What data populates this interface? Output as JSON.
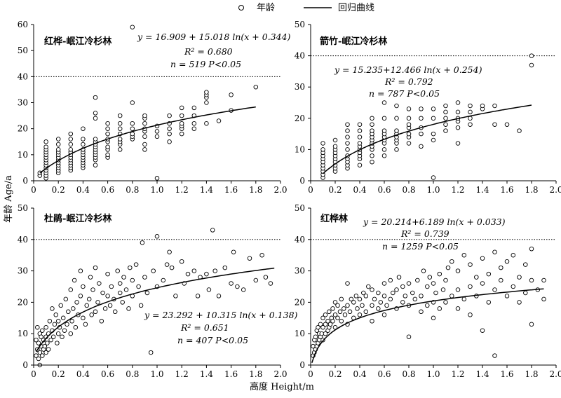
{
  "legend": {
    "scatter_label": "年龄",
    "line_label": "回归曲线"
  },
  "xlabel": "高度 Height/m",
  "ylabel": "年龄 Age/a",
  "chart_data": [
    {
      "type": "scatter",
      "title": "红桦-岷江冷杉林",
      "equation": "y = 16.909 + 15.018 ln(x + 0.344)",
      "r2": "R² = 0.680",
      "n_p": "n = 519   P<0.05",
      "xlim": [
        0,
        2.0
      ],
      "ylim": [
        0,
        60
      ],
      "xticks": [
        "0",
        "0.2",
        "0.4",
        "0.6",
        "0.8",
        "1.0",
        "1.2",
        "1.4",
        "1.6",
        "1.8",
        "2.0"
      ],
      "yticks": [
        "0",
        "10",
        "20",
        "30",
        "40",
        "50",
        "60"
      ],
      "reference_line": 40,
      "fit": {
        "a": 16.909,
        "b": 15.018,
        "c": 0.344,
        "x_from": 0.05,
        "x_to": 1.8
      },
      "series": [
        {
          "x": [
            0.05,
            0.05,
            0.1,
            0.1,
            0.1,
            0.1,
            0.1,
            0.1,
            0.1,
            0.1,
            0.1,
            0.1,
            0.1,
            0.1,
            0.1,
            0.1,
            0.2,
            0.2,
            0.2,
            0.2,
            0.2,
            0.2,
            0.2,
            0.2,
            0.2,
            0.2,
            0.2,
            0.2,
            0.3,
            0.3,
            0.3,
            0.3,
            0.3,
            0.3,
            0.3,
            0.3,
            0.3,
            0.3,
            0.3,
            0.3,
            0.4,
            0.4,
            0.4,
            0.4,
            0.4,
            0.4,
            0.4,
            0.4,
            0.4,
            0.4,
            0.4,
            0.5,
            0.5,
            0.5,
            0.5,
            0.5,
            0.5,
            0.5,
            0.5,
            0.5,
            0.5,
            0.5,
            0.5,
            0.5,
            0.6,
            0.6,
            0.6,
            0.6,
            0.6,
            0.6,
            0.6,
            0.6,
            0.6,
            0.7,
            0.7,
            0.7,
            0.7,
            0.7,
            0.7,
            0.7,
            0.7,
            0.8,
            0.8,
            0.8,
            0.8,
            0.8,
            0.8,
            0.9,
            0.9,
            0.9,
            0.9,
            0.9,
            0.9,
            0.9,
            0.9,
            1.0,
            1.0,
            1.0,
            1.0,
            1.1,
            1.1,
            1.1,
            1.1,
            1.1,
            1.2,
            1.2,
            1.2,
            1.2,
            1.2,
            1.2,
            1.3,
            1.3,
            1.3,
            1.3,
            1.4,
            1.4,
            1.4,
            1.4,
            1.4,
            1.5,
            1.6,
            1.6,
            1.8
          ],
          "y": [
            2,
            3,
            1,
            2,
            3,
            4,
            5,
            6,
            7,
            8,
            9,
            10,
            11,
            12,
            13,
            15,
            3,
            4,
            5,
            6,
            7,
            8,
            9,
            10,
            11,
            12,
            14,
            16,
            4,
            5,
            6,
            7,
            8,
            9,
            10,
            11,
            12,
            14,
            16,
            18,
            5,
            6,
            7,
            8,
            9,
            10,
            11,
            12,
            14,
            16,
            20,
            6,
            8,
            9,
            10,
            11,
            12,
            13,
            14,
            15,
            16,
            24,
            26,
            32,
            9,
            10,
            12,
            13,
            15,
            16,
            18,
            20,
            22,
            12,
            14,
            15,
            16,
            18,
            20,
            22,
            25,
            16,
            17,
            18,
            20,
            22,
            30,
            12,
            14,
            17,
            19,
            20,
            22,
            24,
            25,
            1,
            17,
            19,
            21,
            15,
            18,
            20,
            22,
            25,
            18,
            20,
            21,
            22,
            25,
            28,
            20,
            22,
            25,
            28,
            30,
            32,
            33,
            34,
            22,
            23,
            27,
            33,
            36
          ]
        }
      ],
      "outliers": [
        {
          "x": 0.8,
          "y": 59
        }
      ]
    },
    {
      "type": "scatter",
      "title": "箭竹-岷江冷杉林",
      "equation": "y = 15.235+12.466 ln(x + 0.254)",
      "r2": "R² = 0.792",
      "n_p": "n = 787   P<0.05",
      "xlim": [
        0,
        2.0
      ],
      "ylim": [
        0,
        50
      ],
      "xticks": [
        "0",
        "0.2",
        "0.4",
        "0.6",
        "0.8",
        "1.0",
        "1.2",
        "1.4",
        "1.6",
        "1.8",
        "2.0"
      ],
      "yticks": [
        "0",
        "10",
        "20",
        "30",
        "40",
        "50"
      ],
      "reference_line": 40,
      "fit": {
        "a": 15.235,
        "b": 12.466,
        "c": 0.254,
        "x_from": 0.1,
        "x_to": 1.8
      },
      "series": [
        {
          "x": [
            0.1,
            0.1,
            0.1,
            0.1,
            0.1,
            0.1,
            0.1,
            0.1,
            0.1,
            0.1,
            0.1,
            0.2,
            0.2,
            0.2,
            0.2,
            0.2,
            0.2,
            0.2,
            0.2,
            0.2,
            0.2,
            0.3,
            0.3,
            0.3,
            0.3,
            0.3,
            0.3,
            0.3,
            0.3,
            0.3,
            0.3,
            0.4,
            0.4,
            0.4,
            0.4,
            0.4,
            0.4,
            0.4,
            0.4,
            0.4,
            0.4,
            0.5,
            0.5,
            0.5,
            0.5,
            0.5,
            0.5,
            0.5,
            0.5,
            0.5,
            0.5,
            0.5,
            0.6,
            0.6,
            0.6,
            0.6,
            0.6,
            0.6,
            0.6,
            0.6,
            0.6,
            0.7,
            0.7,
            0.7,
            0.7,
            0.7,
            0.7,
            0.7,
            0.7,
            0.8,
            0.8,
            0.8,
            0.8,
            0.8,
            0.8,
            0.8,
            0.9,
            0.9,
            0.9,
            0.9,
            0.9,
            1.0,
            1.0,
            1.0,
            1.0,
            1.0,
            1.1,
            1.1,
            1.1,
            1.1,
            1.1,
            1.2,
            1.2,
            1.2,
            1.2,
            1.2,
            1.2,
            1.3,
            1.3,
            1.3,
            1.3,
            1.4,
            1.4,
            1.5,
            1.5,
            1.6,
            1.7,
            1.8,
            1.8
          ],
          "y": [
            1,
            2,
            3,
            4,
            5,
            6,
            7,
            8,
            9,
            10,
            12,
            3,
            4,
            5,
            6,
            7,
            8,
            9,
            10,
            11,
            13,
            4,
            5,
            6,
            7,
            8,
            10,
            12,
            14,
            16,
            18,
            5,
            7,
            8,
            9,
            10,
            11,
            12,
            14,
            16,
            18,
            6,
            8,
            10,
            11,
            12,
            13,
            14,
            15,
            16,
            18,
            20,
            8,
            10,
            12,
            13,
            14,
            15,
            16,
            20,
            25,
            10,
            12,
            13,
            14,
            15,
            16,
            20,
            24,
            12,
            14,
            15,
            17,
            18,
            20,
            23,
            11,
            15,
            17,
            20,
            23,
            1,
            13,
            15,
            20,
            23,
            16,
            18,
            20,
            22,
            24,
            12,
            17,
            19,
            20,
            22,
            25,
            18,
            20,
            22,
            24,
            23,
            24,
            18,
            24,
            18,
            16,
            37,
            40
          ]
        }
      ],
      "outliers": []
    },
    {
      "type": "scatter",
      "title": "杜鹃-岷江冷杉林",
      "equation": "y = 23.292 + 10.315 ln(x + 0.138)",
      "r2": "R² = 0.651",
      "n_p": "n = 407   P<0.05",
      "xlim": [
        0,
        2.0
      ],
      "ylim": [
        0,
        50
      ],
      "xticks": [
        "0",
        "0.2",
        "0.4",
        "0.6",
        "0.8",
        "1.0",
        "1.2",
        "1.4",
        "1.6",
        "1.8",
        "2.0"
      ],
      "yticks": [
        "0",
        "10",
        "20",
        "30",
        "40",
        "50"
      ],
      "reference_line": 40,
      "fit": {
        "a": 23.292,
        "b": 10.315,
        "c": 0.138,
        "x_from": 0.02,
        "x_to": 1.95
      },
      "series": [
        {
          "x": [
            0.02,
            0.02,
            0.03,
            0.03,
            0.04,
            0.04,
            0.05,
            0.05,
            0.05,
            0.06,
            0.06,
            0.07,
            0.07,
            0.08,
            0.08,
            0.09,
            0.1,
            0.1,
            0.1,
            0.11,
            0.12,
            0.12,
            0.13,
            0.14,
            0.15,
            0.15,
            0.16,
            0.17,
            0.18,
            0.19,
            0.2,
            0.2,
            0.21,
            0.22,
            0.23,
            0.24,
            0.25,
            0.26,
            0.27,
            0.28,
            0.3,
            0.3,
            0.31,
            0.32,
            0.33,
            0.34,
            0.35,
            0.36,
            0.38,
            0.38,
            0.4,
            0.4,
            0.42,
            0.43,
            0.45,
            0.46,
            0.47,
            0.48,
            0.5,
            0.5,
            0.52,
            0.53,
            0.55,
            0.56,
            0.58,
            0.6,
            0.6,
            0.62,
            0.63,
            0.65,
            0.66,
            0.68,
            0.7,
            0.7,
            0.72,
            0.73,
            0.75,
            0.77,
            0.78,
            0.8,
            0.8,
            0.83,
            0.85,
            0.87,
            0.88,
            0.9,
            0.92,
            0.95,
            0.97,
            1.0,
            1.0,
            1.05,
            1.08,
            1.1,
            1.12,
            1.15,
            1.2,
            1.22,
            1.25,
            1.3,
            1.33,
            1.35,
            1.4,
            1.42,
            1.45,
            1.47,
            1.5,
            1.55,
            1.6,
            1.62,
            1.65,
            1.7,
            1.75,
            1.8,
            1.85,
            1.88,
            1.92
          ],
          "y": [
            3,
            8,
            5,
            12,
            2,
            7,
            0,
            10,
            4,
            6,
            9,
            3,
            11,
            5,
            8,
            6,
            4,
            9,
            12,
            7,
            10,
            5,
            14,
            8,
            11,
            18,
            9,
            13,
            16,
            7,
            10,
            14,
            12,
            19,
            9,
            15,
            11,
            21,
            13,
            17,
            10,
            24,
            14,
            18,
            27,
            12,
            20,
            16,
            22,
            30,
            15,
            25,
            13,
            19,
            21,
            28,
            16,
            24,
            17,
            31,
            20,
            26,
            14,
            23,
            18,
            22,
            29,
            19,
            25,
            21,
            17,
            30,
            23,
            26,
            20,
            28,
            24,
            18,
            31,
            22,
            27,
            32,
            25,
            19,
            39,
            28,
            23,
            4,
            30,
            41,
            25,
            27,
            32,
            36,
            31,
            22,
            33,
            26,
            29,
            30,
            22,
            28,
            29,
            24,
            43,
            30,
            22,
            31,
            26,
            36,
            25,
            24,
            34,
            27,
            35,
            28,
            26
          ]
        }
      ],
      "outliers": []
    },
    {
      "type": "scatter",
      "title": "红桦林",
      "equation": "y = 20.214+6.189 ln(x + 0.033)",
      "r2": "R² = 0.739",
      "n_p": "n = 1259   P<0.05",
      "xlim": [
        0,
        2.0
      ],
      "ylim": [
        0,
        50
      ],
      "xticks": [
        "0",
        "0.2",
        "0.4",
        "0.6",
        "0.8",
        "1.0",
        "1.2",
        "1.4",
        "1.6",
        "1.8",
        "2.0"
      ],
      "yticks": [
        "0",
        "10",
        "20",
        "30",
        "40",
        "50"
      ],
      "reference_line": 40,
      "fit": {
        "a": 20.214,
        "b": 6.189,
        "c": 0.033,
        "x_from": 0.01,
        "x_to": 1.9
      },
      "series": [
        {
          "x": [
            0.02,
            0.02,
            0.03,
            0.03,
            0.04,
            0.04,
            0.05,
            0.05,
            0.06,
            0.06,
            0.07,
            0.07,
            0.08,
            0.08,
            0.09,
            0.1,
            0.1,
            0.1,
            0.12,
            0.12,
            0.12,
            0.14,
            0.14,
            0.15,
            0.15,
            0.16,
            0.17,
            0.18,
            0.18,
            0.2,
            0.2,
            0.2,
            0.22,
            0.22,
            0.24,
            0.25,
            0.25,
            0.27,
            0.28,
            0.3,
            0.3,
            0.3,
            0.32,
            0.33,
            0.35,
            0.35,
            0.37,
            0.38,
            0.4,
            0.4,
            0.42,
            0.43,
            0.45,
            0.45,
            0.47,
            0.5,
            0.5,
            0.5,
            0.52,
            0.55,
            0.55,
            0.57,
            0.6,
            0.6,
            0.6,
            0.62,
            0.65,
            0.65,
            0.67,
            0.7,
            0.7,
            0.72,
            0.75,
            0.75,
            0.77,
            0.8,
            0.8,
            0.8,
            0.83,
            0.85,
            0.87,
            0.9,
            0.9,
            0.92,
            0.95,
            0.95,
            0.97,
            1.0,
            1.0,
            1.0,
            1.02,
            1.05,
            1.05,
            1.08,
            1.1,
            1.1,
            1.12,
            1.15,
            1.15,
            1.2,
            1.2,
            1.2,
            1.25,
            1.25,
            1.3,
            1.3,
            1.3,
            1.35,
            1.35,
            1.4,
            1.4,
            1.4,
            1.45,
            1.45,
            1.5,
            1.5,
            1.5,
            1.55,
            1.55,
            1.6,
            1.6,
            1.65,
            1.65,
            1.7,
            1.7,
            1.75,
            1.75,
            1.8,
            1.8,
            1.8,
            1.85,
            1.9,
            1.9
          ],
          "y": [
            3,
            6,
            4,
            8,
            5,
            9,
            6,
            11,
            7,
            12,
            8,
            10,
            9,
            13,
            10,
            8,
            12,
            15,
            10,
            13,
            16,
            11,
            14,
            12,
            17,
            13,
            15,
            14,
            18,
            12,
            16,
            20,
            15,
            19,
            17,
            14,
            21,
            18,
            16,
            13,
            19,
            26,
            17,
            21,
            15,
            20,
            22,
            18,
            16,
            21,
            19,
            23,
            17,
            22,
            25,
            14,
            19,
            24,
            21,
            18,
            23,
            20,
            16,
            22,
            26,
            19,
            21,
            27,
            23,
            18,
            24,
            28,
            20,
            25,
            22,
            9,
            19,
            26,
            23,
            21,
            27,
            17,
            22,
            30,
            19,
            25,
            28,
            15,
            20,
            26,
            23,
            18,
            29,
            24,
            20,
            27,
            31,
            22,
            33,
            18,
            24,
            30,
            21,
            35,
            16,
            25,
            32,
            22,
            28,
            11,
            26,
            34,
            20,
            29,
            3,
            24,
            36,
            27,
            31,
            22,
            33,
            25,
            35,
            20,
            28,
            23,
            32,
            13,
            27,
            37,
            24,
            21,
            27
          ]
        }
      ],
      "outliers": []
    }
  ]
}
